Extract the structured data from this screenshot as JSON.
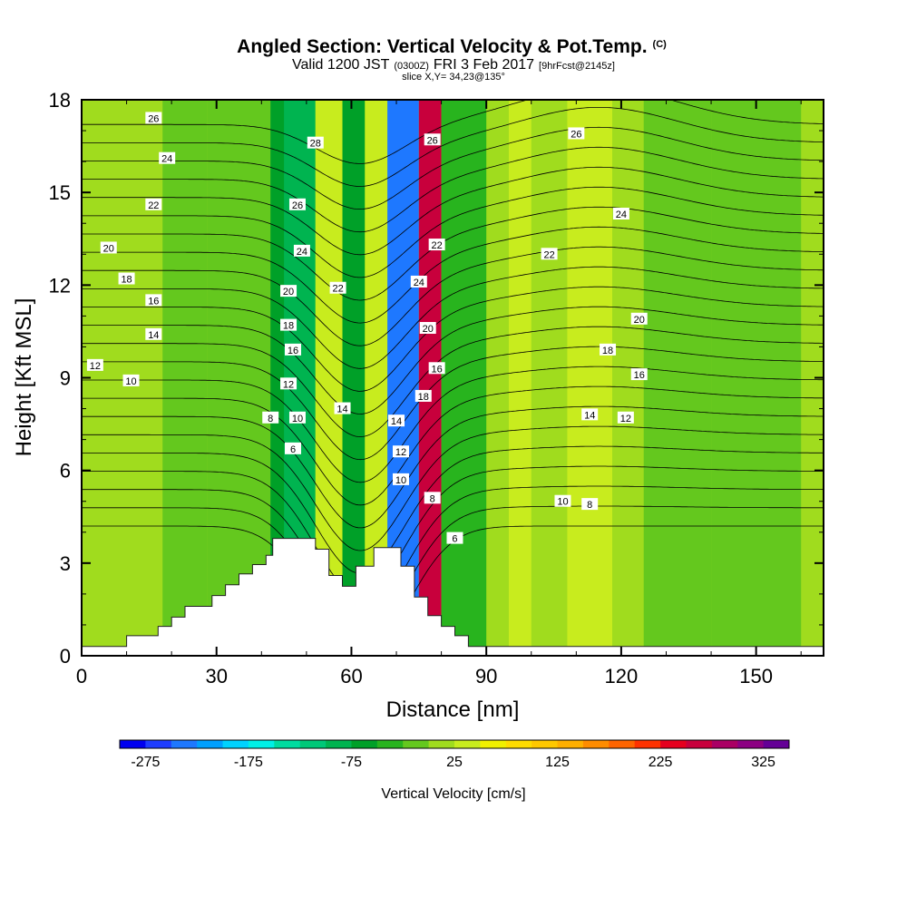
{
  "chart_data": {
    "type": "heatmap",
    "title": "Angled Section: Vertical Velocity & Pot.Temp.",
    "title_units": "(C)",
    "subtitle_pre": "Valid 1200 JST",
    "subtitle_utc": "(0300Z)",
    "subtitle_post": "FRI 3 Feb 2017",
    "subtitle_fcst": "[9hrFcst@2145z]",
    "slice_label": "slice X,Y= 34,23@135°",
    "xlabel": "Distance [nm]",
    "ylabel": "Height [Kft MSL]",
    "xlim": [
      0,
      165
    ],
    "ylim": [
      0,
      18
    ],
    "xticks": [
      "0",
      "30",
      "60",
      "90",
      "120",
      "150"
    ],
    "yticks": [
      "0",
      "3",
      "6",
      "9",
      "12",
      "15",
      "18"
    ],
    "colorbar": {
      "label": "Vertical Velocity [cm/s]",
      "tick_labels": [
        "-275",
        "-175",
        "-75",
        "25",
        "125",
        "225",
        "325"
      ],
      "colors": [
        "#0000f0",
        "#1e3cff",
        "#1e78ff",
        "#00a0ff",
        "#00d2ff",
        "#00f0e6",
        "#00dca0",
        "#00c878",
        "#00b450",
        "#00a028",
        "#28b41e",
        "#64c81e",
        "#a0dc1e",
        "#c8ec1e",
        "#f0f000",
        "#ffdc00",
        "#ffc800",
        "#ffaf00",
        "#ff8c00",
        "#ff6400",
        "#ff3200",
        "#e6001e",
        "#c8003c",
        "#aa0064",
        "#8c0082",
        "#640096"
      ]
    },
    "velocity_bands": [
      {
        "x0": 0,
        "x1": 165,
        "value": 5
      },
      {
        "x0": 18,
        "x1": 28,
        "value": -10
      },
      {
        "x0": 28,
        "x1": 45,
        "value": -25
      },
      {
        "x0": 42,
        "x1": 48,
        "value": -60
      },
      {
        "x0": 45,
        "x1": 52,
        "value": -100
      },
      {
        "x0": 52,
        "x1": 58,
        "value": 45
      },
      {
        "x0": 58,
        "x1": 63,
        "value": -55
      },
      {
        "x0": 63,
        "x1": 68,
        "value": 40
      },
      {
        "x0": 68,
        "x1": 75,
        "value": -250
      },
      {
        "x0": 75,
        "x1": 80,
        "value": 260
      },
      {
        "x0": 80,
        "x1": 90,
        "value": -30
      },
      {
        "x0": 95,
        "x1": 100,
        "value": 30
      },
      {
        "x0": 108,
        "x1": 118,
        "value": 35
      },
      {
        "x0": 125,
        "x1": 140,
        "value": -15
      },
      {
        "x0": 140,
        "x1": 160,
        "value": -20
      }
    ],
    "theta_levels": [
      6,
      8,
      10,
      12,
      14,
      16,
      18,
      20,
      22,
      24,
      26,
      28
    ],
    "contour_labels": [
      {
        "text": "26",
        "x": 16,
        "y": 17.4
      },
      {
        "text": "24",
        "x": 19,
        "y": 16.1
      },
      {
        "text": "22",
        "x": 16,
        "y": 14.6
      },
      {
        "text": "20",
        "x": 6,
        "y": 13.2
      },
      {
        "text": "18",
        "x": 10,
        "y": 12.2
      },
      {
        "text": "16",
        "x": 16,
        "y": 11.5
      },
      {
        "text": "14",
        "x": 16,
        "y": 10.4
      },
      {
        "text": "12",
        "x": 3,
        "y": 9.4
      },
      {
        "text": "10",
        "x": 11,
        "y": 8.9
      },
      {
        "text": "8",
        "x": 42,
        "y": 7.7
      },
      {
        "text": "6",
        "x": 47,
        "y": 6.7
      },
      {
        "text": "10",
        "x": 48,
        "y": 7.7
      },
      {
        "text": "12",
        "x": 46,
        "y": 8.8
      },
      {
        "text": "16",
        "x": 47,
        "y": 9.9
      },
      {
        "text": "18",
        "x": 46,
        "y": 10.7
      },
      {
        "text": "20",
        "x": 46,
        "y": 11.8
      },
      {
        "text": "24",
        "x": 49,
        "y": 13.1
      },
      {
        "text": "26",
        "x": 48,
        "y": 14.6
      },
      {
        "text": "28",
        "x": 52,
        "y": 16.6
      },
      {
        "text": "22",
        "x": 57,
        "y": 11.9
      },
      {
        "text": "14",
        "x": 58,
        "y": 8.0
      },
      {
        "text": "14",
        "x": 70,
        "y": 7.6
      },
      {
        "text": "12",
        "x": 71,
        "y": 6.6
      },
      {
        "text": "10",
        "x": 71,
        "y": 5.7
      },
      {
        "text": "18",
        "x": 76,
        "y": 8.4
      },
      {
        "text": "16",
        "x": 79,
        "y": 9.3
      },
      {
        "text": "20",
        "x": 77,
        "y": 10.6
      },
      {
        "text": "22",
        "x": 79,
        "y": 13.3
      },
      {
        "text": "24",
        "x": 75,
        "y": 12.1
      },
      {
        "text": "26",
        "x": 78,
        "y": 16.7
      },
      {
        "text": "8",
        "x": 78,
        "y": 5.1
      },
      {
        "text": "6",
        "x": 83,
        "y": 3.8
      },
      {
        "text": "26",
        "x": 110,
        "y": 16.9
      },
      {
        "text": "24",
        "x": 120,
        "y": 14.3
      },
      {
        "text": "22",
        "x": 104,
        "y": 13.0
      },
      {
        "text": "20",
        "x": 124,
        "y": 10.9
      },
      {
        "text": "18",
        "x": 117,
        "y": 9.9
      },
      {
        "text": "16",
        "x": 124,
        "y": 9.1
      },
      {
        "text": "14",
        "x": 113,
        "y": 7.8
      },
      {
        "text": "12",
        "x": 121,
        "y": 7.7
      },
      {
        "text": "10",
        "x": 107,
        "y": 5.0
      },
      {
        "text": "8",
        "x": 113,
        "y": 4.9
      }
    ],
    "terrain": [
      [
        0,
        0.3
      ],
      [
        10,
        0.3
      ],
      [
        10,
        0.65
      ],
      [
        17,
        0.65
      ],
      [
        17,
        0.95
      ],
      [
        20,
        0.95
      ],
      [
        20,
        1.25
      ],
      [
        23,
        1.25
      ],
      [
        23,
        1.6
      ],
      [
        29,
        1.6
      ],
      [
        29,
        1.95
      ],
      [
        32,
        1.95
      ],
      [
        32,
        2.3
      ],
      [
        35,
        2.3
      ],
      [
        35,
        2.65
      ],
      [
        38,
        2.65
      ],
      [
        38,
        2.95
      ],
      [
        41,
        2.95
      ],
      [
        41,
        3.25
      ],
      [
        42.5,
        3.25
      ],
      [
        42.5,
        3.8
      ],
      [
        52,
        3.8
      ],
      [
        52,
        3.45
      ],
      [
        55,
        3.45
      ],
      [
        55,
        2.6
      ],
      [
        58,
        2.6
      ],
      [
        58,
        2.25
      ],
      [
        61,
        2.25
      ],
      [
        61,
        2.9
      ],
      [
        65,
        2.9
      ],
      [
        65,
        3.5
      ],
      [
        71,
        3.5
      ],
      [
        71,
        2.9
      ],
      [
        74,
        2.9
      ],
      [
        74,
        1.9
      ],
      [
        77,
        1.9
      ],
      [
        77,
        1.3
      ],
      [
        80,
        1.3
      ],
      [
        80,
        0.95
      ],
      [
        83,
        0.95
      ],
      [
        83,
        0.65
      ],
      [
        86,
        0.65
      ],
      [
        86,
        0.3
      ],
      [
        165,
        0.3
      ]
    ]
  }
}
